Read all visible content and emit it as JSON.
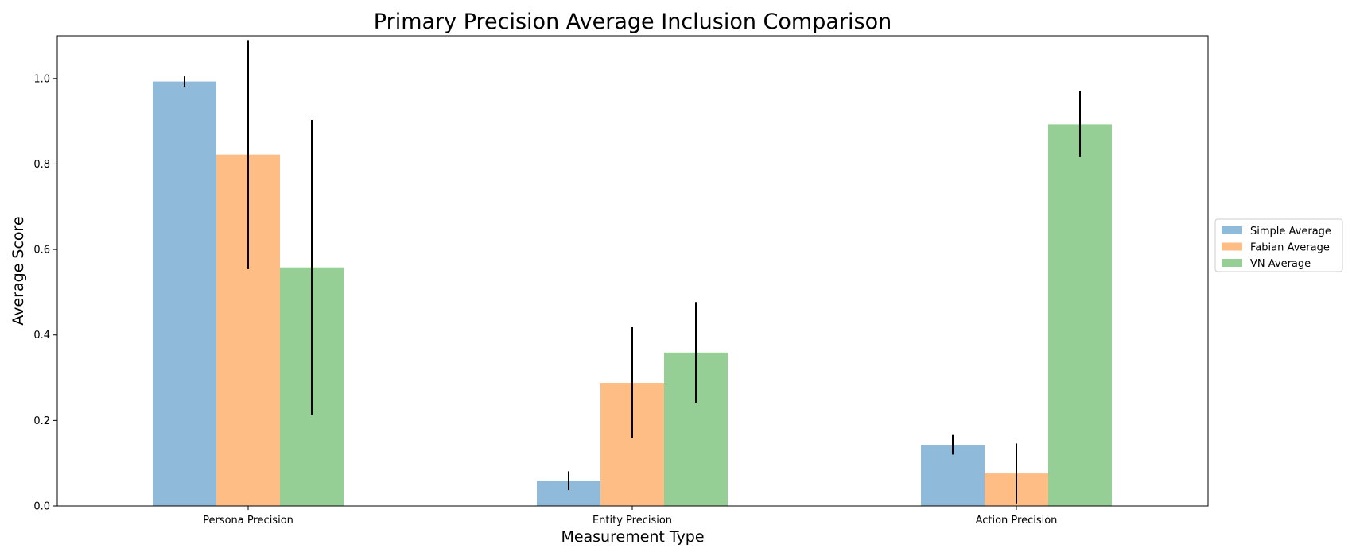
{
  "chart_data": {
    "type": "bar",
    "title": "Primary Precision Average Inclusion Comparison",
    "xlabel": "Measurement Type",
    "ylabel": "Average Score",
    "categories": [
      "Persona Precision",
      "Entity Precision",
      "Action Precision"
    ],
    "ylim": [
      0,
      1.1
    ],
    "yticks": [
      0.0,
      0.2,
      0.4,
      0.6,
      0.8,
      1.0
    ],
    "ytick_labels": [
      "0.0",
      "0.2",
      "0.4",
      "0.6",
      "0.8",
      "1.0"
    ],
    "grid": false,
    "legend_position": "center-right",
    "series": [
      {
        "name": "Simple Average",
        "color": "#8fbad9",
        "values": [
          0.993,
          0.059,
          0.143
        ],
        "errors": [
          0.012,
          0.022,
          0.023
        ]
      },
      {
        "name": "Fabian Average",
        "color": "#ffbd86",
        "values": [
          0.822,
          0.288,
          0.076
        ],
        "errors": [
          0.268,
          0.13,
          0.07
        ]
      },
      {
        "name": "VN Average",
        "color": "#95cf95",
        "values": [
          0.558,
          0.359,
          0.893
        ],
        "errors": [
          0.345,
          0.118,
          0.077
        ]
      }
    ]
  }
}
